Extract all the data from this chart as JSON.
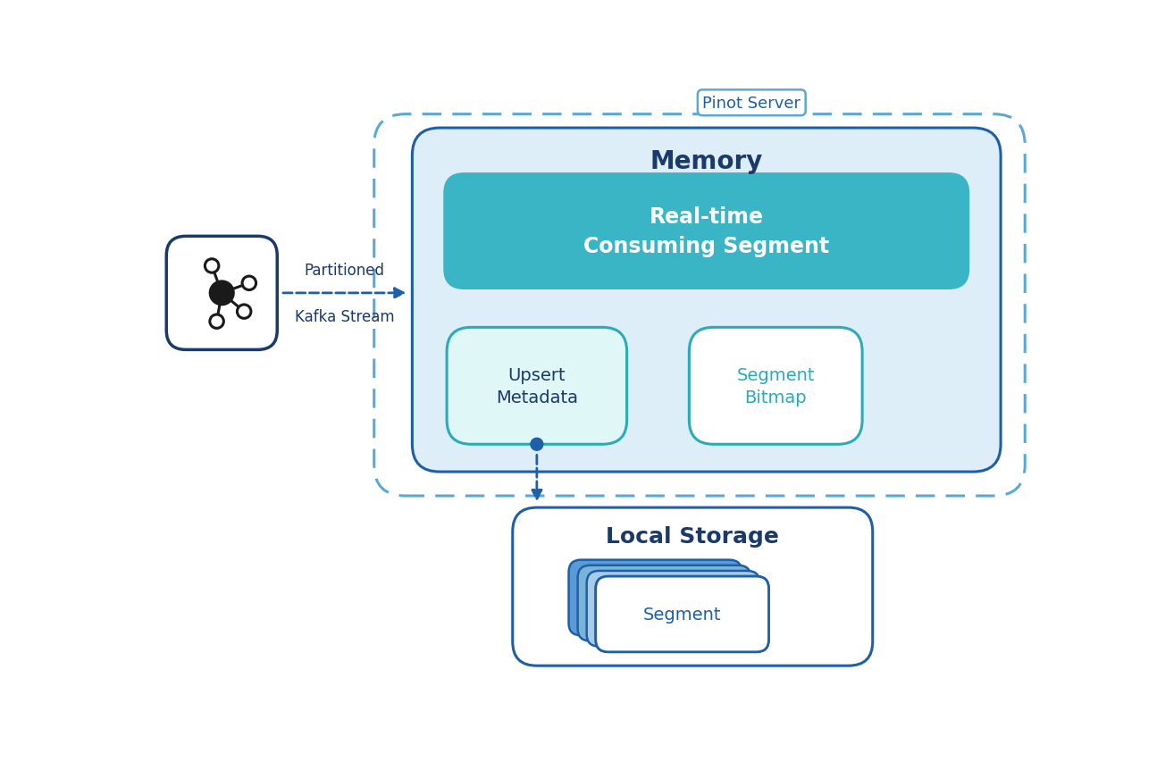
{
  "bg_color": "#ffffff",
  "dark_blue": "#1a3a6b",
  "medium_blue": "#1d5fa8",
  "teal_fill": "#3ab5c6",
  "teal_border": "#2a9db0",
  "light_blue_fill": "#deeef8",
  "light_teal_fill": "#e0f7f8",
  "teal_border2": "#2aacb8",
  "segment_blue": "#5b9bd5",
  "segment_light": "#a8cce8",
  "dashed_blue": "#1d5fa8",
  "local_storage_border": "#1d5fa8",
  "memory_border": "#1d5fa8",
  "pinot_server_border": "#5ba8d4",
  "title_memory": "Memory",
  "title_local_storage": "Local Storage",
  "title_pinot_server": "Pinot Server",
  "label_realtime": "Real-time\nConsuming Segment",
  "label_upsert": "Upsert\nMetadata",
  "label_segment_bitmap": "Segment\nBitmap",
  "label_segment": "Segment",
  "label_partitioned": "Partitioned",
  "label_kafka": "Kafka Stream"
}
